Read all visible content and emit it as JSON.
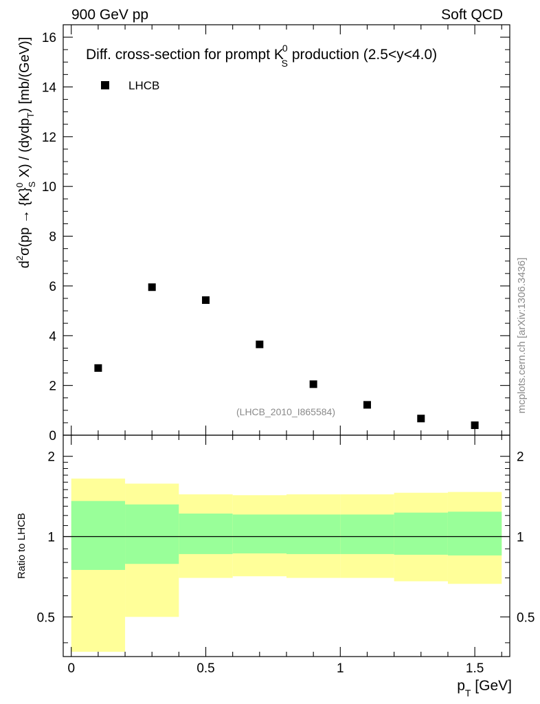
{
  "header": {
    "left": "900 GeV pp",
    "right": "Soft QCD"
  },
  "side_label": "mcplots.cern.ch [arXiv:1306.3436]",
  "chart_data": [
    {
      "type": "scatter",
      "panel": "main",
      "title": {
        "prefix": "Diff. cross-section for prompt K",
        "sup": "0",
        "sub": "S",
        "suffix": " production (2.5<y<4.0)"
      },
      "ylabel": {
        "p1": "d",
        "p1_sup": "2",
        "p2": "σ(pp → {K}",
        "p2_sup": "0",
        "p2_sub": "S",
        "p3": " X) / (dydp",
        "p3_sub": "T",
        "p4": ") [mb/(GeV)]"
      },
      "ylim": [
        0,
        16.5
      ],
      "yticks": [
        0,
        2,
        4,
        6,
        8,
        10,
        12,
        14,
        16
      ],
      "ytick_labels": [
        "0",
        "2",
        "4",
        "6",
        "8",
        "10",
        "12",
        "14",
        "16"
      ],
      "xlim": [
        -0.03,
        1.63
      ],
      "legend": {
        "label": "LHCB",
        "position": "top-left"
      },
      "annotation": "(LHCB_2010_I865584)",
      "series": [
        {
          "name": "LHCB",
          "x": [
            0.1,
            0.3,
            0.5,
            0.7,
            0.9,
            1.1,
            1.3,
            1.5
          ],
          "y": [
            2.7,
            5.95,
            5.43,
            3.65,
            2.05,
            1.22,
            0.67,
            0.4
          ]
        }
      ]
    },
    {
      "type": "area",
      "panel": "ratio",
      "ylabel": "Ratio to LHCB",
      "xlabel": {
        "main": "p",
        "sub": "T",
        "rest": " [GeV]"
      },
      "ylim_log": [
        0.355,
        2.4
      ],
      "yticks": [
        0.5,
        1,
        2
      ],
      "ytick_labels": [
        "0.5",
        "1",
        "2"
      ],
      "xticks": [
        0,
        0.5,
        1,
        1.5
      ],
      "xtick_labels": [
        "0",
        "0.5",
        "1",
        "1.5"
      ],
      "xlim": [
        -0.03,
        1.63
      ],
      "reference_line": 1,
      "bins": [
        [
          0,
          0.2
        ],
        [
          0.2,
          0.4
        ],
        [
          0.4,
          0.6
        ],
        [
          0.6,
          0.8
        ],
        [
          0.8,
          1.0
        ],
        [
          1.0,
          1.2
        ],
        [
          1.2,
          1.4
        ],
        [
          1.4,
          1.6
        ]
      ],
      "band_total": {
        "color": "#ffff99",
        "low": [
          0.37,
          0.5,
          0.7,
          0.71,
          0.7,
          0.7,
          0.68,
          0.665
        ],
        "high": [
          1.65,
          1.58,
          1.44,
          1.43,
          1.44,
          1.44,
          1.46,
          1.47
        ]
      },
      "band_stat": {
        "color": "#99ff99",
        "low": [
          0.75,
          0.79,
          0.86,
          0.865,
          0.86,
          0.86,
          0.855,
          0.85
        ],
        "high": [
          1.36,
          1.32,
          1.22,
          1.21,
          1.21,
          1.21,
          1.23,
          1.24
        ]
      }
    }
  ]
}
